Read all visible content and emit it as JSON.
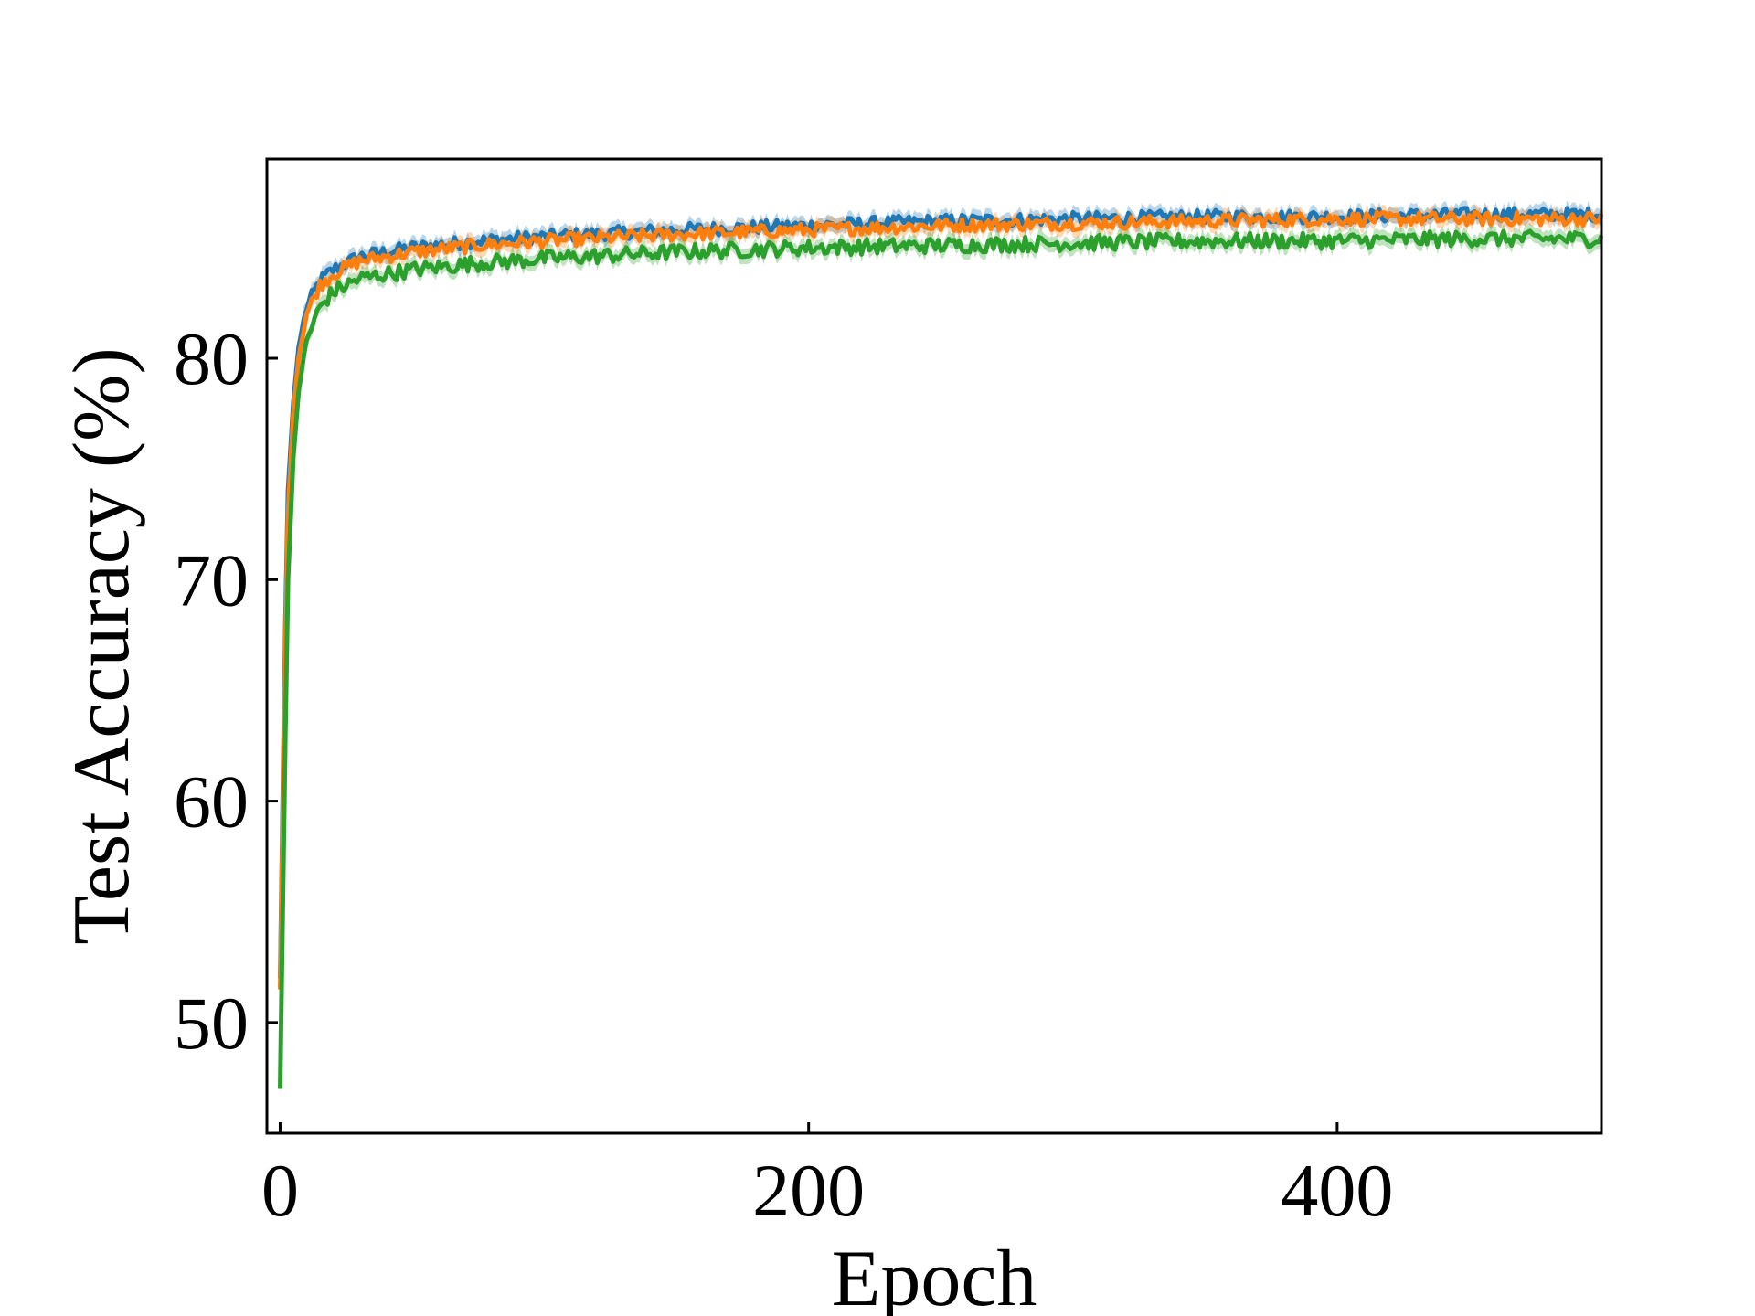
{
  "chart_data": {
    "type": "line",
    "title": "",
    "xlabel": "Epoch",
    "ylabel": "Test Accuracy (%)",
    "xlim": [
      -5,
      500
    ],
    "ylim": [
      45,
      89
    ],
    "xticks": [
      0,
      200,
      400
    ],
    "yticks": [
      50,
      60,
      70,
      80
    ],
    "xtick_labels": [
      "0",
      "200",
      "400"
    ],
    "ytick_labels": [
      "50",
      "60",
      "70",
      "80"
    ],
    "grid": false,
    "legend": "none",
    "shaded_band": true,
    "series": [
      {
        "color": "#1f77b4",
        "x": [
          0,
          1,
          2,
          3,
          5,
          7,
          10,
          15,
          20,
          30,
          50,
          75,
          100,
          150,
          200,
          250,
          300,
          350,
          400,
          450,
          500
        ],
        "y": [
          52.0,
          60.0,
          68.0,
          74.0,
          78.0,
          80.5,
          82.3,
          83.5,
          84.0,
          84.6,
          85.0,
          85.3,
          85.5,
          85.8,
          86.0,
          86.2,
          86.3,
          86.4,
          86.4,
          86.5,
          86.5
        ],
        "noise": 0.3
      },
      {
        "color": "#ff7f0e",
        "x": [
          0,
          1,
          2,
          3,
          5,
          7,
          10,
          15,
          20,
          30,
          50,
          75,
          100,
          150,
          200,
          250,
          300,
          350,
          400,
          450,
          500
        ],
        "y": [
          51.5,
          59.0,
          67.0,
          73.0,
          77.5,
          80.0,
          82.0,
          83.3,
          83.8,
          84.4,
          84.8,
          85.1,
          85.3,
          85.6,
          85.8,
          86.0,
          86.1,
          86.2,
          86.3,
          86.3,
          86.3
        ],
        "noise": 0.3
      },
      {
        "color": "#2ca02c",
        "x": [
          0,
          1,
          2,
          3,
          5,
          7,
          10,
          15,
          20,
          30,
          50,
          75,
          100,
          150,
          200,
          250,
          300,
          350,
          400,
          450,
          500
        ],
        "y": [
          47.0,
          55.0,
          63.0,
          70.0,
          75.5,
          78.5,
          80.8,
          82.3,
          83.0,
          83.6,
          84.0,
          84.3,
          84.5,
          84.8,
          85.0,
          85.1,
          85.2,
          85.3,
          85.3,
          85.4,
          85.4
        ],
        "noise": 0.35
      }
    ]
  }
}
